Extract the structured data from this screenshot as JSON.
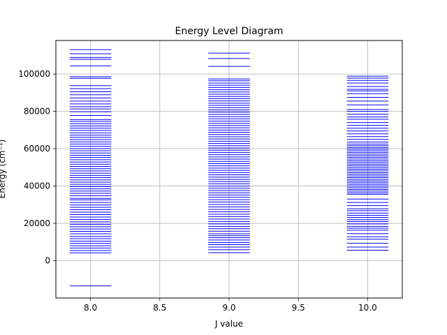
{
  "chart_data": {
    "type": "event-plot",
    "title": "Energy Level Diagram",
    "xlabel": "J value",
    "ylabel": "Energy (cm⁻¹)",
    "xlim": [
      7.75,
      10.25
    ],
    "ylim": [
      -20000,
      118000
    ],
    "xticks": [
      "8.0",
      "8.5",
      "9.0",
      "9.5",
      "10.0"
    ],
    "xtick_values": [
      8.0,
      8.5,
      9.0,
      9.5,
      10.0
    ],
    "yticks": [
      "0",
      "20000",
      "40000",
      "60000",
      "80000",
      "100000"
    ],
    "ytick_values": [
      0,
      20000,
      40000,
      60000,
      80000,
      100000
    ],
    "grid": true,
    "line_color": "#0000ff",
    "level_half_width": 0.15,
    "series": [
      {
        "x": 8.0,
        "levels": [
          -13500,
          4200,
          5500,
          6800,
          8000,
          9300,
          10500,
          11800,
          13000,
          14400,
          15700,
          17000,
          18200,
          19500,
          20800,
          22100,
          23400,
          24700,
          26000,
          27300,
          28600,
          29900,
          31200,
          32600,
          33400,
          34800,
          36100,
          37300,
          38500,
          39700,
          40900,
          42100,
          43300,
          44500,
          45700,
          46900,
          48100,
          49300,
          50500,
          51700,
          52900,
          54100,
          55300,
          56500,
          57700,
          58900,
          60100,
          61300,
          62500,
          63700,
          64900,
          66100,
          67300,
          68500,
          69800,
          71000,
          72200,
          73400,
          74600,
          75600,
          77800,
          79800,
          81300,
          82500,
          84000,
          85500,
          87200,
          88900,
          90500,
          92200,
          93800,
          97700,
          98600,
          104400,
          107900,
          108900,
          110900,
          113100
        ]
      },
      {
        "x": 9.0,
        "levels": [
          4300,
          5900,
          7300,
          8600,
          9800,
          11100,
          12300,
          13400,
          14400,
          15800,
          17100,
          18400,
          19700,
          21000,
          22300,
          23600,
          24900,
          26200,
          27500,
          28800,
          30100,
          31400,
          32700,
          34000,
          35200,
          36400,
          37600,
          38800,
          40000,
          41200,
          42400,
          43600,
          44800,
          46000,
          47200,
          48400,
          49600,
          50800,
          52000,
          53200,
          54400,
          55600,
          56800,
          58000,
          59200,
          60400,
          61600,
          62800,
          64000,
          65200,
          66400,
          67600,
          68800,
          70000,
          71200,
          72400,
          73600,
          74800,
          76000,
          77200,
          78400,
          79600,
          80800,
          82000,
          83200,
          84400,
          85600,
          86800,
          88000,
          89200,
          90400,
          91600,
          92800,
          94000,
          95200,
          96400,
          97400,
          104100,
          108300,
          111200
        ]
      },
      {
        "x": 10.0,
        "levels": [
          5600,
          7300,
          9300,
          11500,
          12800,
          14500,
          16300,
          17400,
          18400,
          19700,
          21000,
          22000,
          23200,
          24300,
          25500,
          26800,
          27800,
          29500,
          31200,
          33000,
          35600,
          36400,
          37300,
          38200,
          39100,
          40000,
          40900,
          41800,
          42700,
          43600,
          44500,
          45400,
          46300,
          47200,
          48100,
          49000,
          49900,
          50800,
          51700,
          52600,
          53500,
          54400,
          55300,
          56200,
          57100,
          58000,
          58900,
          59800,
          60700,
          61600,
          62500,
          63600,
          65000,
          66500,
          68000,
          69500,
          71000,
          72500,
          74000,
          75800,
          77000,
          78500,
          80000,
          81000,
          83500,
          85500,
          87500,
          89500,
          91000,
          91800,
          93300,
          95200,
          96600,
          97800,
          98900
        ]
      }
    ]
  }
}
